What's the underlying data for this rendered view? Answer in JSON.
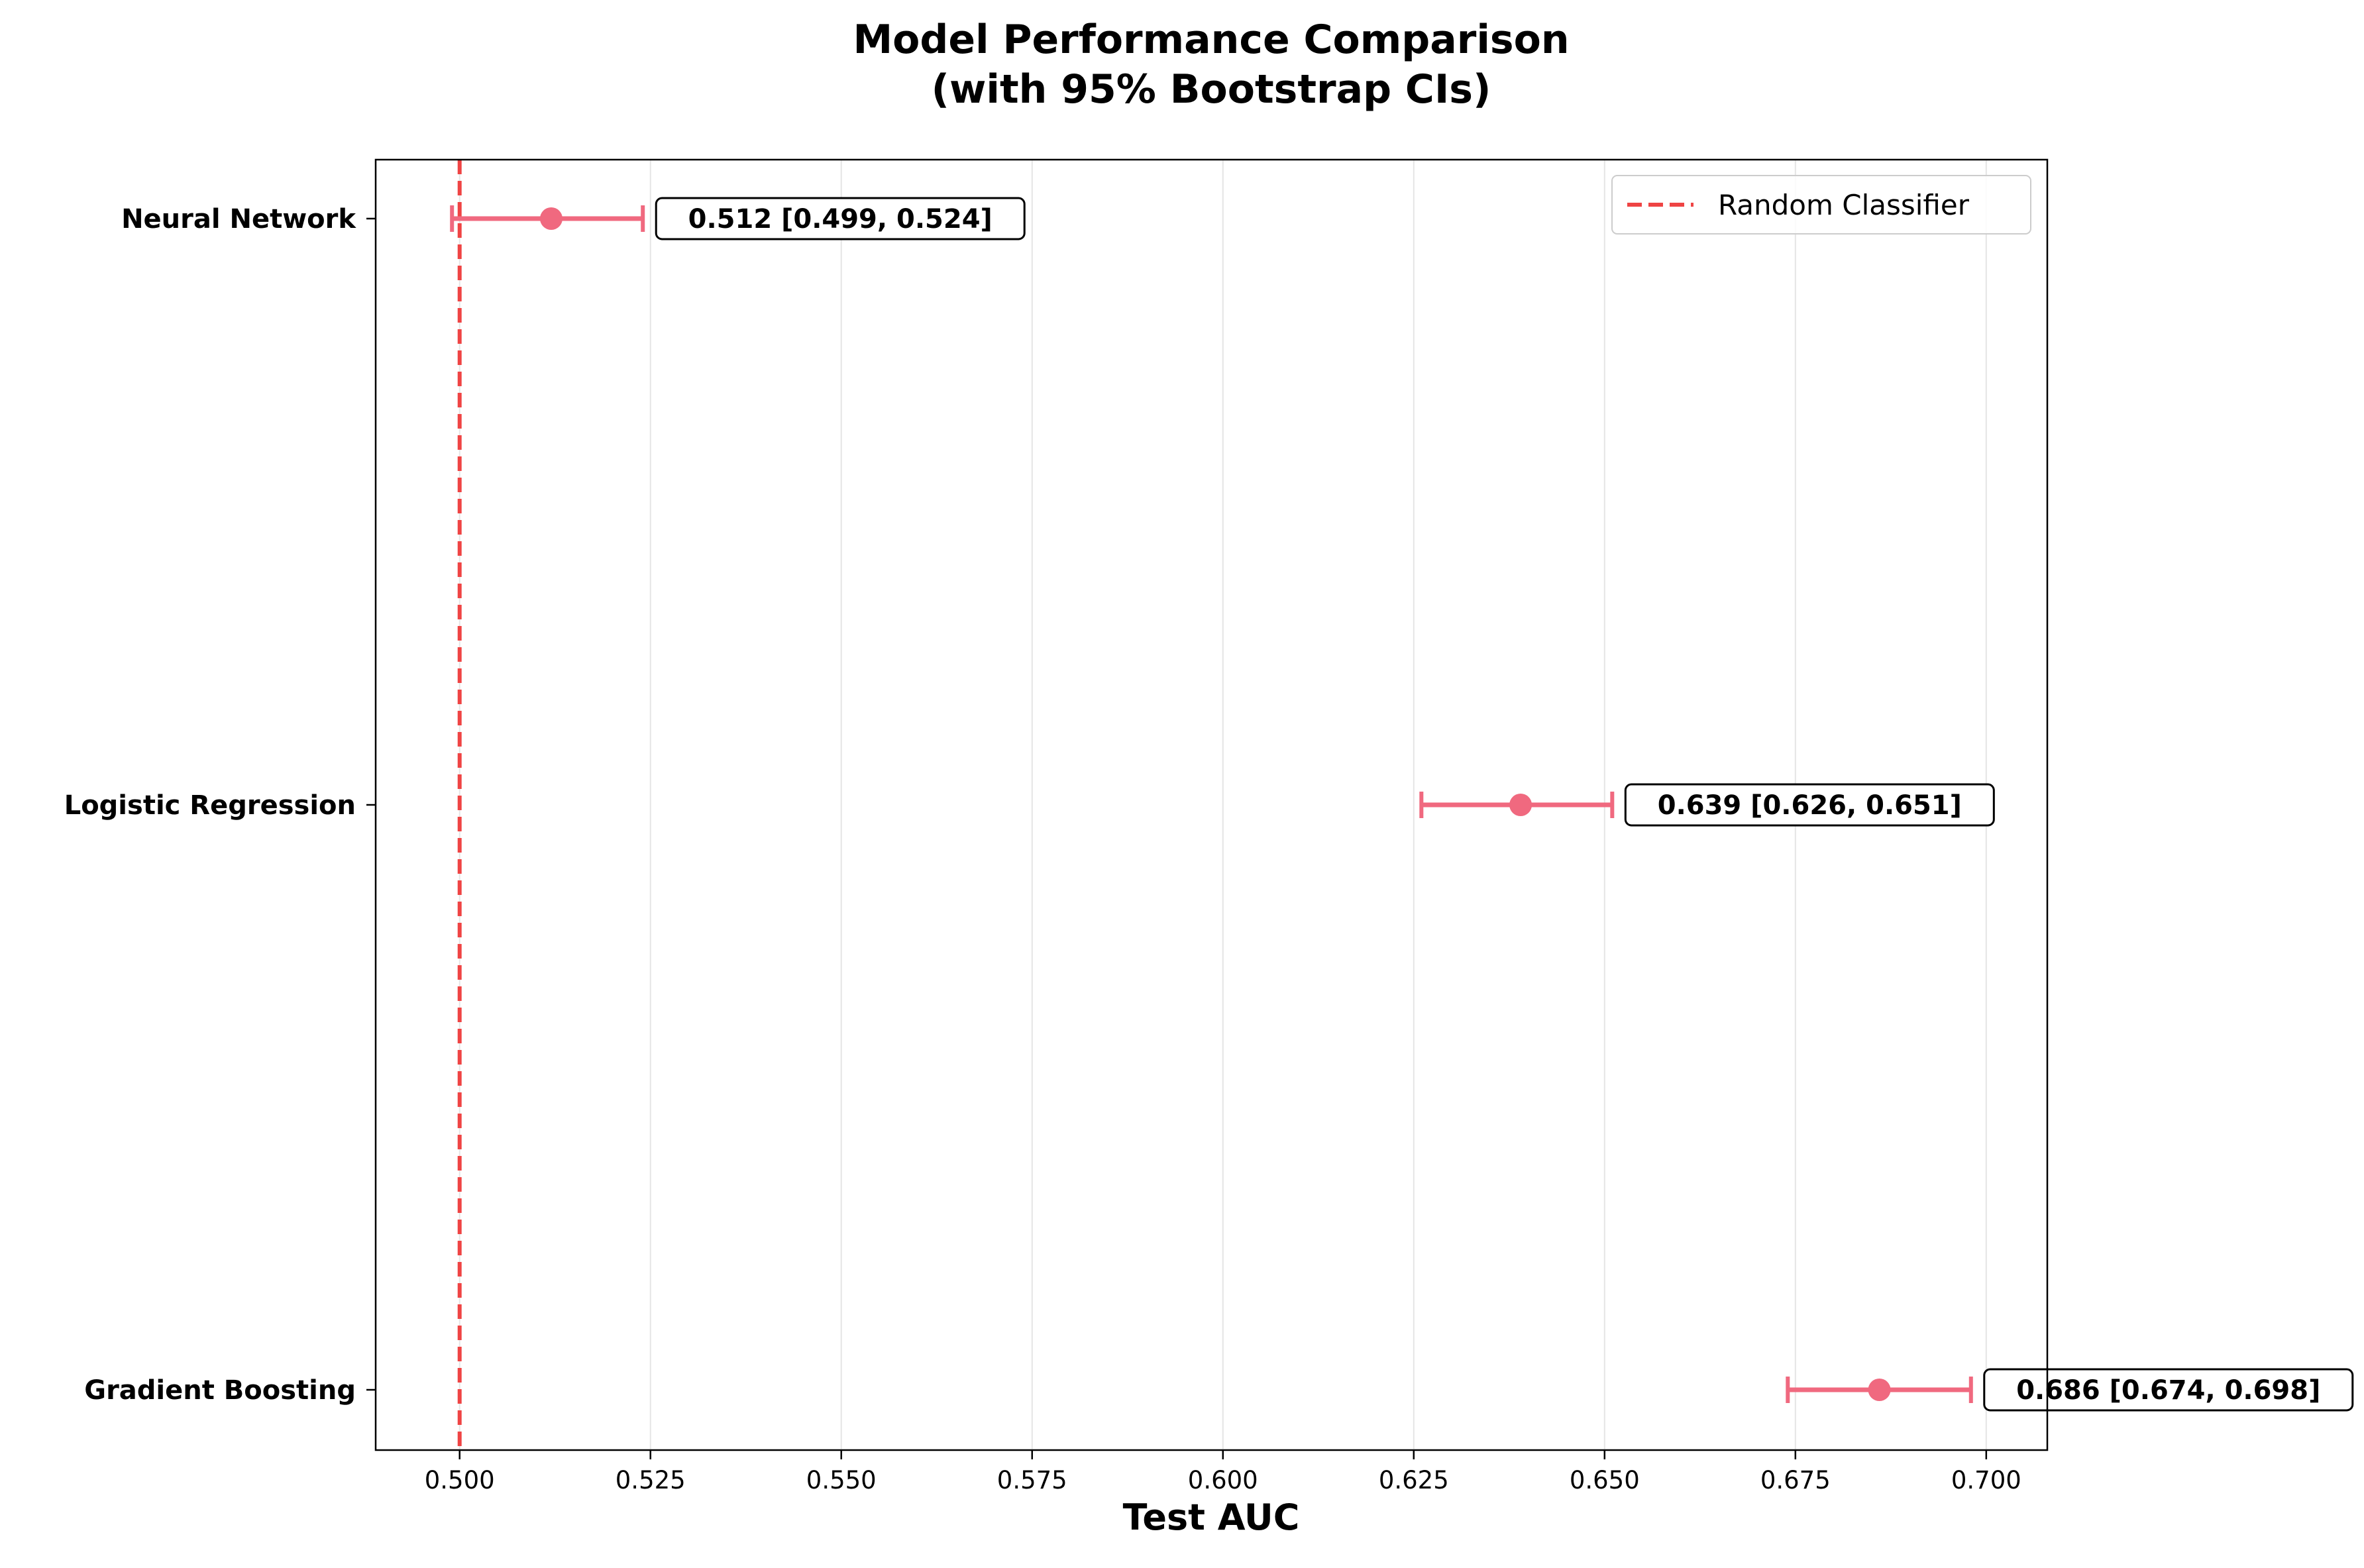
{
  "chart_data": {
    "type": "errorbar",
    "title": [
      "Model Performance Comparison",
      "(with 95% Bootstrap CIs)"
    ],
    "xlabel": "Test AUC",
    "ylabel": "",
    "xlim": [
      0.489,
      0.708
    ],
    "xticks": [
      {
        "value": 0.5,
        "label": "0.500"
      },
      {
        "value": 0.525,
        "label": "0.525"
      },
      {
        "value": 0.55,
        "label": "0.550"
      },
      {
        "value": 0.575,
        "label": "0.575"
      },
      {
        "value": 0.6,
        "label": "0.600"
      },
      {
        "value": 0.625,
        "label": "0.625"
      },
      {
        "value": 0.65,
        "label": "0.650"
      },
      {
        "value": 0.675,
        "label": "0.675"
      },
      {
        "value": 0.7,
        "label": "0.700"
      }
    ],
    "grid": "x",
    "categories": [
      "Neural Network",
      "Logistic Regression",
      "Gradient Boosting"
    ],
    "points": [
      {
        "model": "Neural Network",
        "auc": 0.512,
        "ci_low": 0.499,
        "ci_high": 0.524,
        "label": "0.512 [0.499, 0.524]"
      },
      {
        "model": "Logistic Regression",
        "auc": 0.639,
        "ci_low": 0.626,
        "ci_high": 0.651,
        "label": "0.639 [0.626, 0.651]"
      },
      {
        "model": "Gradient Boosting",
        "auc": 0.686,
        "ci_low": 0.674,
        "ci_high": 0.698,
        "label": "0.686 [0.674, 0.698]"
      }
    ],
    "reference_line": {
      "x": 0.5,
      "label": "Random Classifier",
      "style": "dashed"
    },
    "legend": {
      "position": "top-right",
      "entries": [
        "Random Classifier"
      ]
    },
    "colors": {
      "points": "#f0697f",
      "reference": "#ef4444",
      "grid": "#e5e5e5"
    }
  }
}
